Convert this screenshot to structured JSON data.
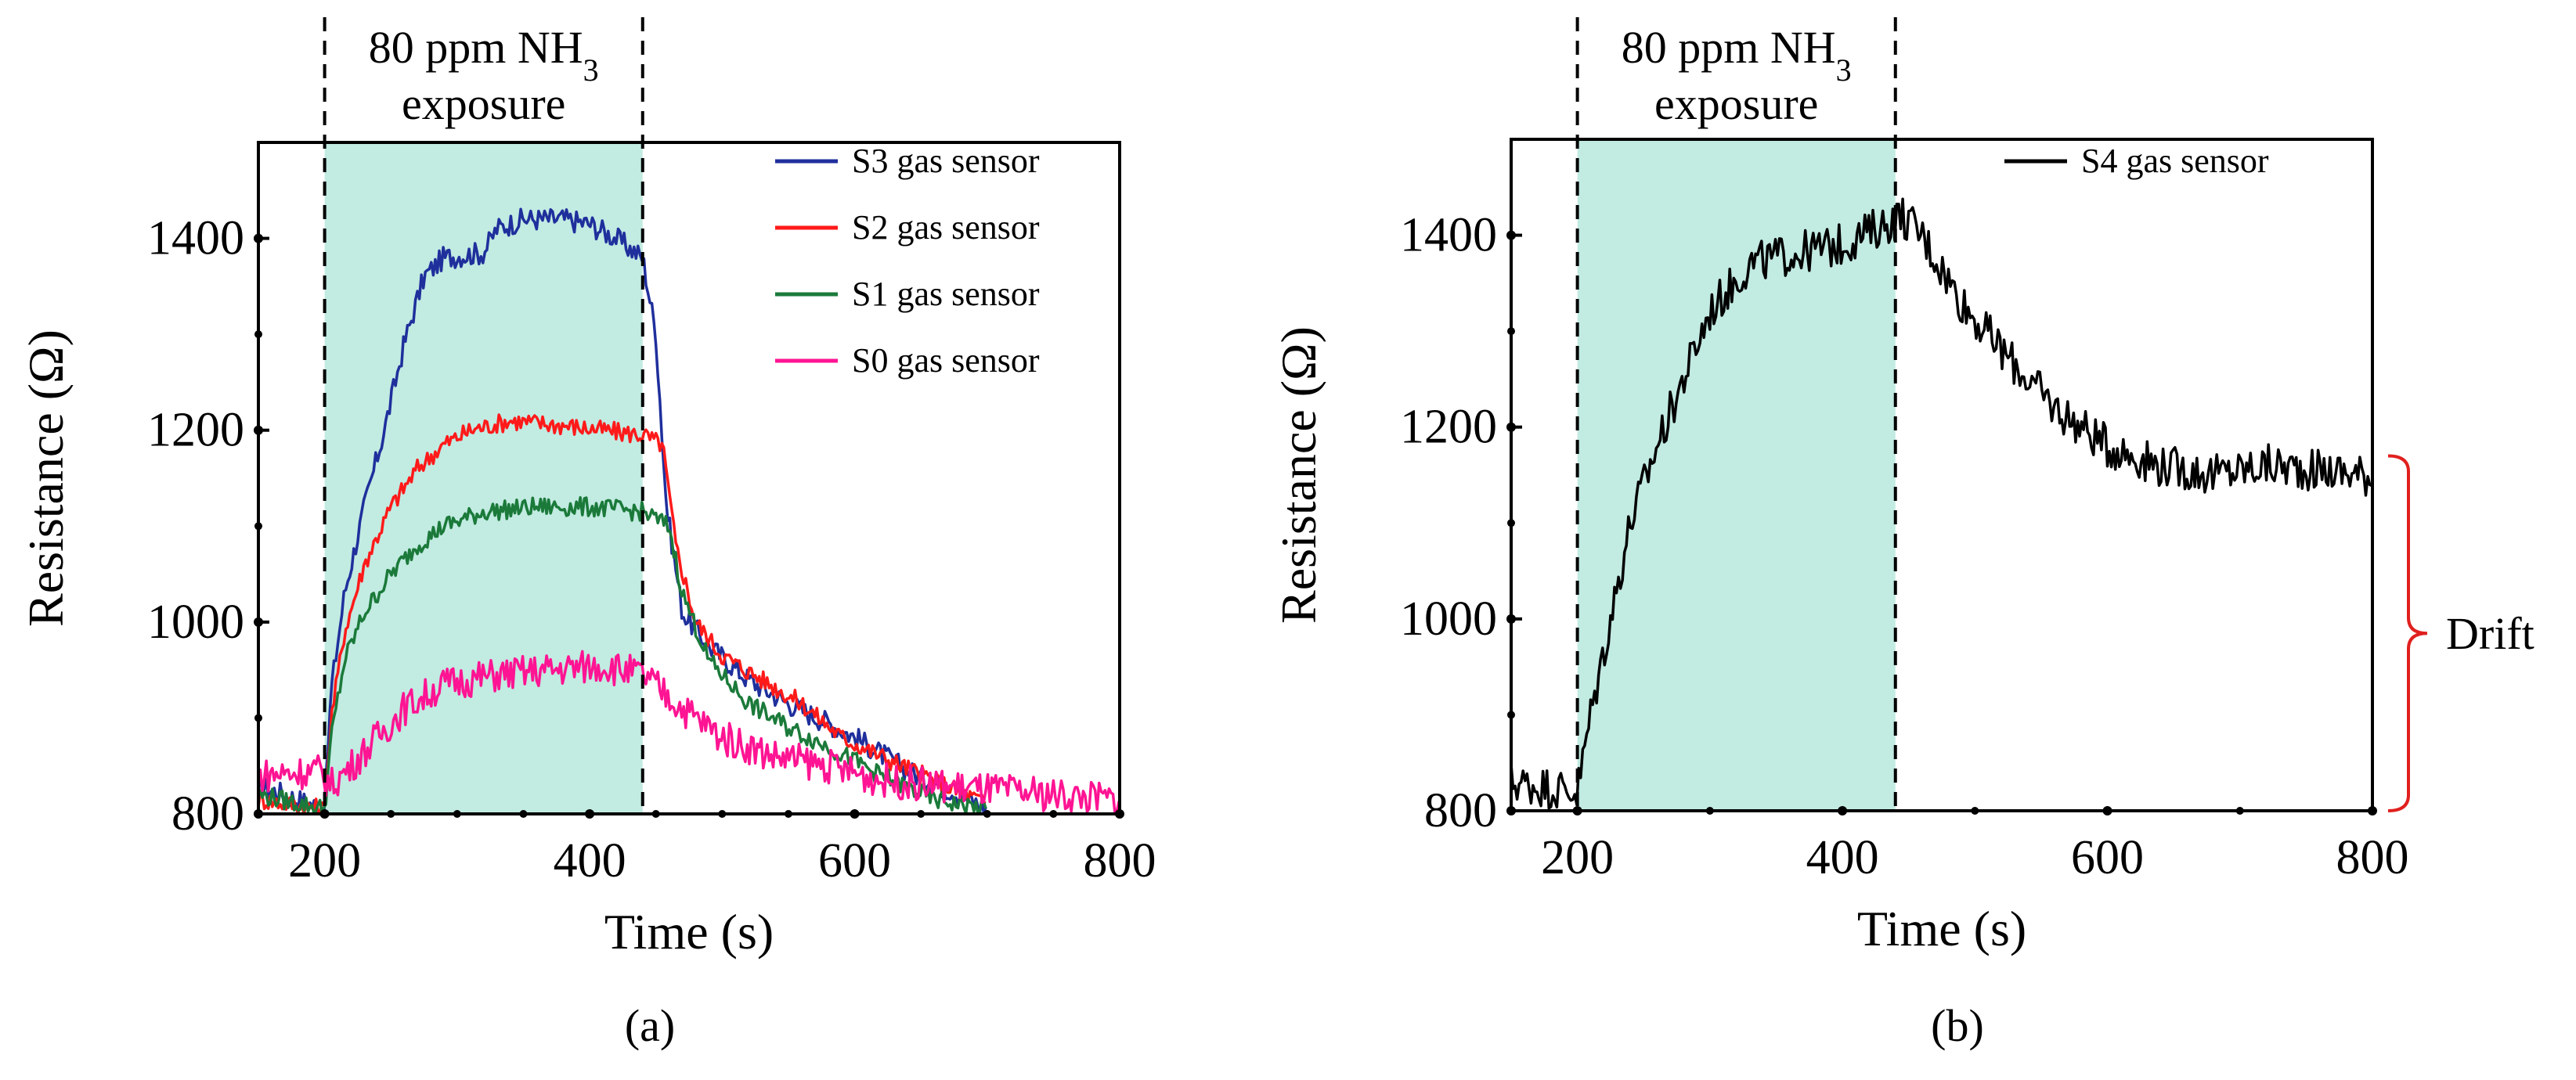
{
  "chart_data": [
    {
      "type": "line",
      "panel_label": "(a)",
      "xlabel": "Time (s)",
      "ylabel": "Resistance (Ω)",
      "xlim": [
        150,
        800
      ],
      "ylim": [
        800,
        1500
      ],
      "xticks": [
        200,
        400,
        600,
        800
      ],
      "yticks": [
        800,
        1000,
        1200,
        1400
      ],
      "minor_xticks": [
        250,
        300,
        350,
        450,
        500,
        550,
        650,
        700,
        750
      ],
      "minor_yticks": [
        900,
        1100,
        1300
      ],
      "exposure": {
        "start": 200,
        "end": 440,
        "label_line1": "80 ppm NH",
        "label_sub": "3",
        "label_line2": "exposure"
      },
      "legend_position": "top-right",
      "series": [
        {
          "name": "S3 gas sensor",
          "color": "#1f2f9c",
          "noise": 12,
          "points": [
            [
              150,
              830
            ],
            [
              200,
              805
            ],
            [
              205,
              930
            ],
            [
              215,
              1030
            ],
            [
              230,
              1120
            ],
            [
              245,
              1200
            ],
            [
              260,
              1290
            ],
            [
              275,
              1360
            ],
            [
              290,
              1380
            ],
            [
              320,
              1385
            ],
            [
              330,
              1410
            ],
            [
              350,
              1420
            ],
            [
              380,
              1420
            ],
            [
              400,
              1415
            ],
            [
              420,
              1400
            ],
            [
              440,
              1380
            ],
            [
              450,
              1300
            ],
            [
              458,
              1120
            ],
            [
              470,
              1010
            ],
            [
              490,
              975
            ],
            [
              520,
              940
            ],
            [
              550,
              915
            ],
            [
              580,
              895
            ],
            [
              600,
              880
            ],
            [
              640,
              845
            ],
            [
              680,
              820
            ],
            [
              700,
              805
            ]
          ]
        },
        {
          "name": "S2 gas sensor",
          "color": "#ff1a1a",
          "noise": 10,
          "points": [
            [
              150,
              815
            ],
            [
              200,
              805
            ],
            [
              205,
              900
            ],
            [
              215,
              990
            ],
            [
              230,
              1060
            ],
            [
              250,
              1120
            ],
            [
              270,
              1160
            ],
            [
              290,
              1185
            ],
            [
              310,
              1200
            ],
            [
              340,
              1210
            ],
            [
              380,
              1205
            ],
            [
              410,
              1200
            ],
            [
              440,
              1195
            ],
            [
              455,
              1185
            ],
            [
              465,
              1080
            ],
            [
              480,
              1000
            ],
            [
              500,
              965
            ],
            [
              530,
              940
            ],
            [
              560,
              915
            ],
            [
              590,
              880
            ],
            [
              620,
              860
            ],
            [
              660,
              835
            ],
            [
              700,
              810
            ]
          ]
        },
        {
          "name": "S1 gas sensor",
          "color": "#1b7a3a",
          "noise": 10,
          "points": [
            [
              150,
              820
            ],
            [
              200,
              805
            ],
            [
              205,
              880
            ],
            [
              215,
              960
            ],
            [
              230,
              1010
            ],
            [
              250,
              1050
            ],
            [
              270,
              1080
            ],
            [
              290,
              1100
            ],
            [
              320,
              1115
            ],
            [
              360,
              1120
            ],
            [
              400,
              1120
            ],
            [
              440,
              1115
            ],
            [
              460,
              1100
            ],
            [
              470,
              1030
            ],
            [
              490,
              960
            ],
            [
              520,
              915
            ],
            [
              550,
              890
            ],
            [
              580,
              870
            ],
            [
              620,
              840
            ],
            [
              660,
              815
            ],
            [
              700,
              805
            ]
          ]
        },
        {
          "name": "S0 gas sensor",
          "color": "#ff1493",
          "noise": 18,
          "points": [
            [
              150,
              840
            ],
            [
              195,
              845
            ],
            [
              205,
              830
            ],
            [
              220,
              850
            ],
            [
              240,
              880
            ],
            [
              260,
              910
            ],
            [
              290,
              935
            ],
            [
              330,
              945
            ],
            [
              370,
              950
            ],
            [
              410,
              955
            ],
            [
              440,
              945
            ],
            [
              470,
              910
            ],
            [
              500,
              880
            ],
            [
              540,
              860
            ],
            [
              580,
              850
            ],
            [
              620,
              835
            ],
            [
              660,
              830
            ],
            [
              700,
              825
            ],
            [
              750,
              820
            ],
            [
              800,
              815
            ]
          ]
        }
      ]
    },
    {
      "type": "line",
      "panel_label": "(b)",
      "xlabel": "Time (s)",
      "ylabel": "Resistance (Ω)",
      "xlim": [
        150,
        800
      ],
      "ylim": [
        800,
        1500
      ],
      "xticks": [
        200,
        400,
        600,
        800
      ],
      "yticks": [
        800,
        1000,
        1200,
        1400
      ],
      "minor_xticks": [
        300,
        500,
        700
      ],
      "minor_yticks": [
        900,
        1100,
        1300
      ],
      "exposure": {
        "start": 200,
        "end": 440,
        "label_line1": "80 ppm NH",
        "label_sub": "3",
        "label_line2": "exposure"
      },
      "legend_position": "top-right",
      "annotation": {
        "text": "Drift",
        "from": 800,
        "to": 1170
      },
      "series": [
        {
          "name": "S4 gas sensor",
          "color": "#000000",
          "noise": 22,
          "points": [
            [
              150,
              830
            ],
            [
              200,
              820
            ],
            [
              210,
              900
            ],
            [
              225,
              1000
            ],
            [
              240,
              1100
            ],
            [
              260,
              1180
            ],
            [
              280,
              1250
            ],
            [
              300,
              1320
            ],
            [
              330,
              1370
            ],
            [
              360,
              1380
            ],
            [
              400,
              1390
            ],
            [
              430,
              1410
            ],
            [
              445,
              1420
            ],
            [
              460,
              1400
            ],
            [
              490,
              1330
            ],
            [
              520,
              1280
            ],
            [
              560,
              1220
            ],
            [
              600,
              1180
            ],
            [
              640,
              1160
            ],
            [
              680,
              1150
            ],
            [
              720,
              1160
            ],
            [
              760,
              1155
            ],
            [
              800,
              1150
            ]
          ]
        }
      ]
    }
  ]
}
